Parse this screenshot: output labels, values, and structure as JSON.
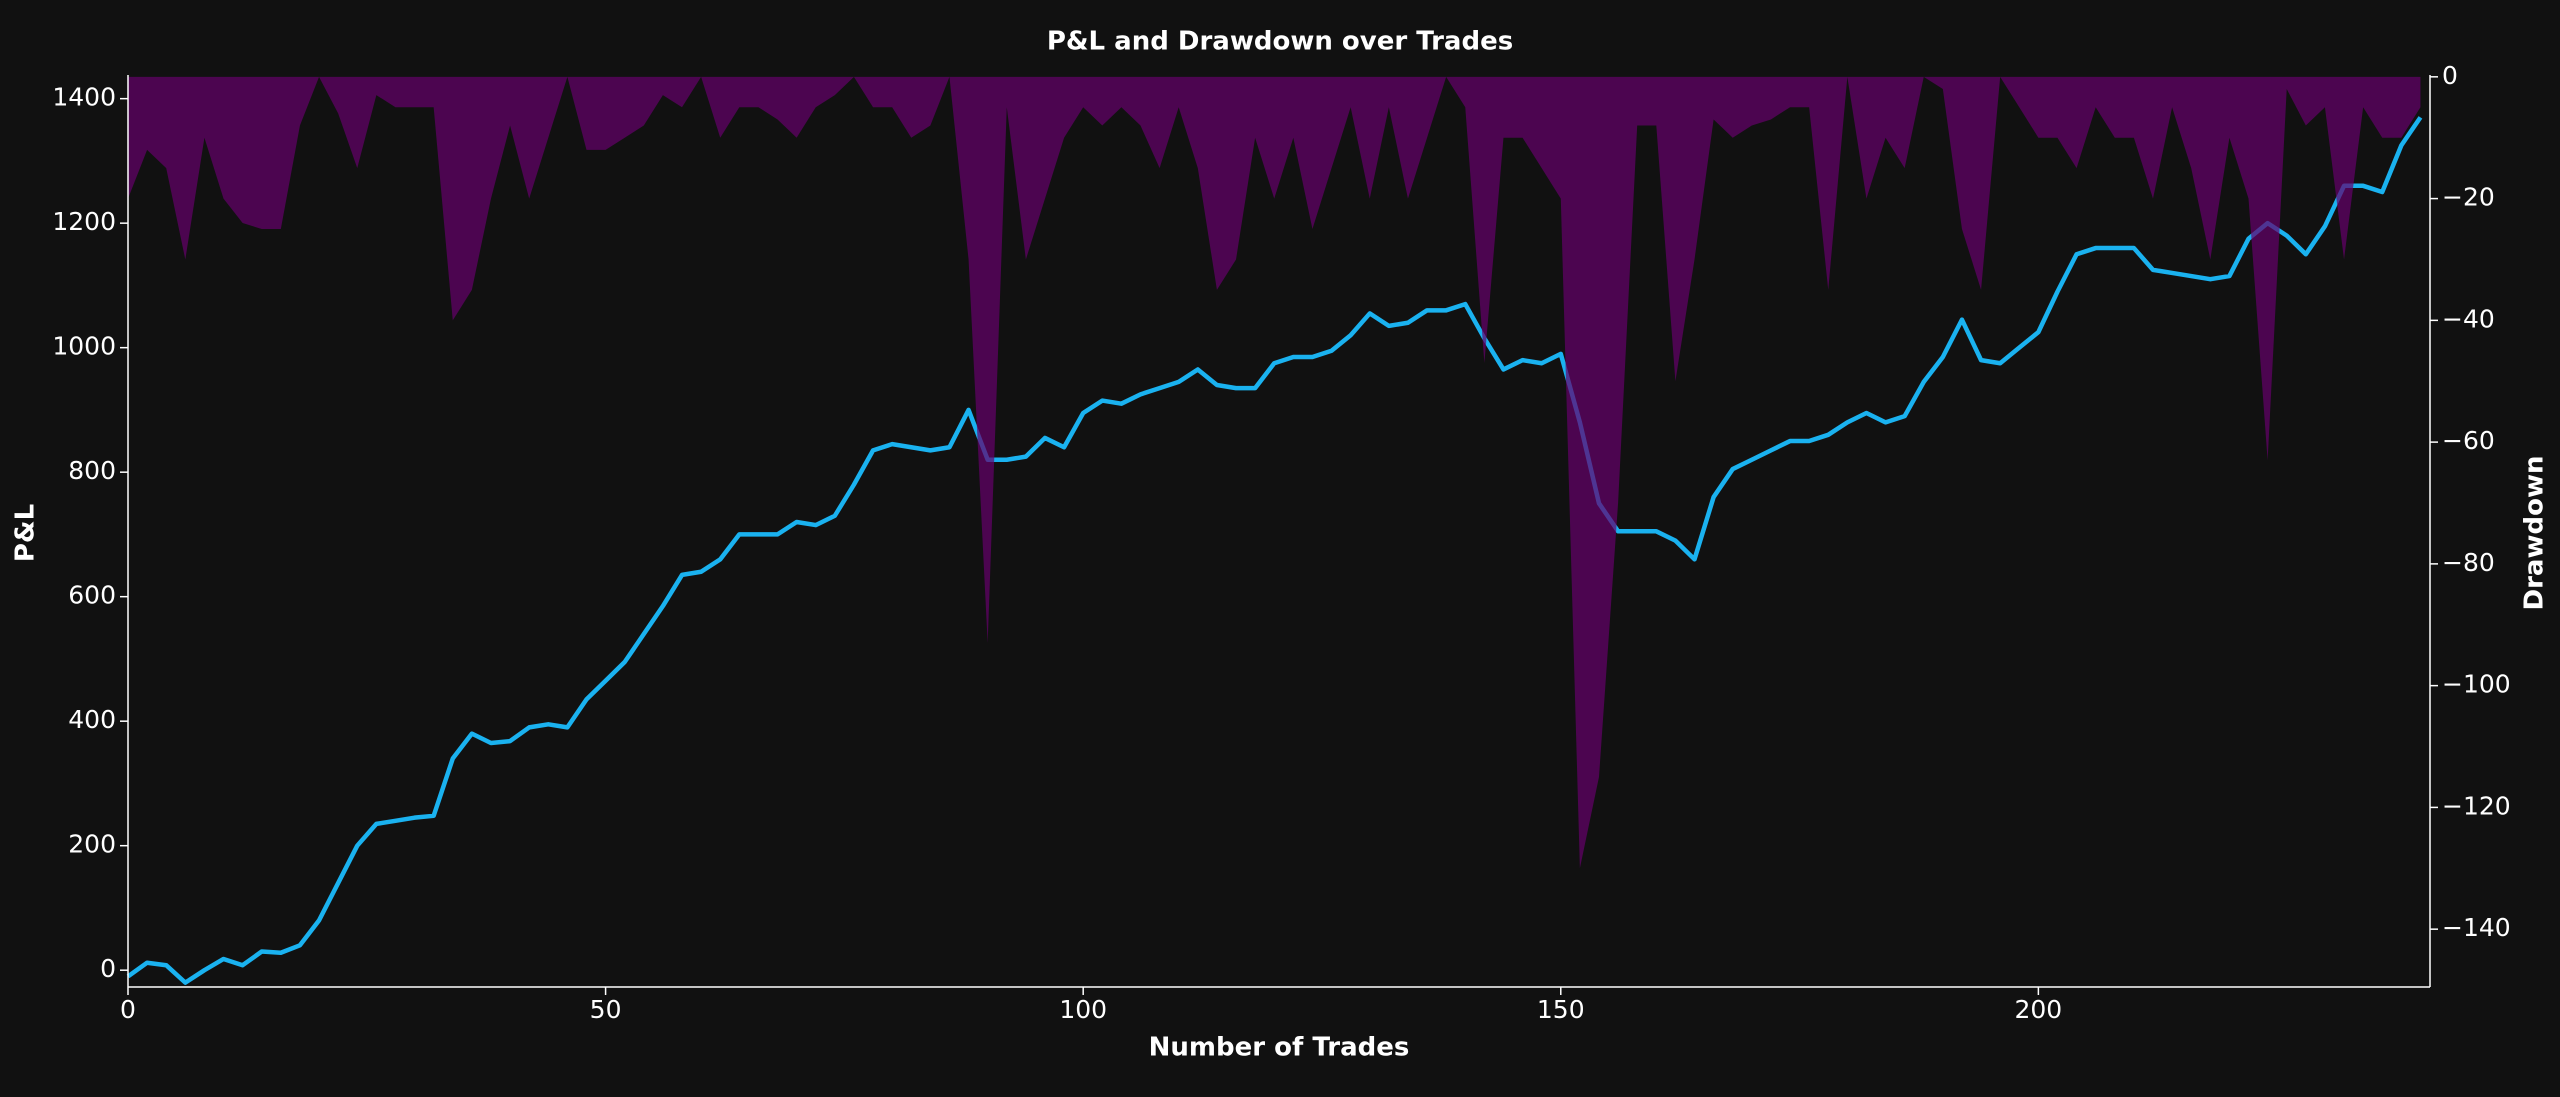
{
  "chart_data": {
    "type": "line",
    "title": "P&L and Drawdown over Trades",
    "x_label": "Number of Trades",
    "y_label": "P&L",
    "y2_label": "Drawdown",
    "x": [
      0,
      2,
      4,
      6,
      8,
      10,
      12,
      14,
      16,
      18,
      20,
      22,
      24,
      26,
      28,
      30,
      32,
      34,
      36,
      38,
      40,
      42,
      44,
      46,
      48,
      50,
      52,
      54,
      56,
      58,
      60,
      62,
      64,
      66,
      68,
      70,
      72,
      74,
      76,
      78,
      80,
      82,
      84,
      86,
      88,
      90,
      92,
      94,
      96,
      98,
      100,
      102,
      104,
      106,
      108,
      110,
      112,
      114,
      116,
      118,
      120,
      122,
      124,
      126,
      128,
      130,
      132,
      134,
      136,
      138,
      140,
      142,
      144,
      146,
      148,
      150,
      152,
      154,
      156,
      158,
      160,
      162,
      164,
      166,
      168,
      170,
      172,
      174,
      176,
      178,
      180,
      182,
      184,
      186,
      188,
      190,
      192,
      194,
      196,
      198,
      200,
      202,
      204,
      206,
      208,
      210,
      212,
      214,
      216,
      218,
      220,
      222,
      224,
      226,
      228,
      230,
      232,
      234,
      236,
      238,
      240
    ],
    "xlim": [
      0,
      241
    ],
    "xticks": [
      0,
      50,
      100,
      150,
      200
    ],
    "ylim": [
      -27,
      1438
    ],
    "yticks": [
      0,
      200,
      400,
      600,
      800,
      1000,
      1200,
      1400
    ],
    "y2lim": [
      -149.5,
      0.3
    ],
    "y2ticks": [
      0,
      {
        "value": -20,
        "label": "−20"
      },
      {
        "value": -40,
        "label": "−40"
      },
      {
        "value": -60,
        "label": "−60"
      },
      {
        "value": -80,
        "label": "−80"
      },
      {
        "value": -100,
        "label": "−100"
      },
      {
        "value": -120,
        "label": "−120"
      },
      {
        "value": -140,
        "label": "−140"
      }
    ],
    "series": [
      {
        "type": "line",
        "color": "#1ab2f0",
        "values": [
          -10,
          12,
          8,
          -20,
          0,
          18,
          8,
          30,
          28,
          40,
          80,
          140,
          200,
          235,
          240,
          245,
          248,
          340,
          380,
          365,
          368,
          390,
          395,
          390,
          435,
          465,
          495,
          540,
          585,
          635,
          640,
          660,
          700,
          700,
          700,
          720,
          715,
          730,
          780,
          835,
          845,
          840,
          835,
          840,
          900,
          820,
          820,
          825,
          855,
          840,
          895,
          915,
          910,
          925,
          935,
          945,
          965,
          940,
          935,
          935,
          975,
          985,
          985,
          995,
          1020,
          1055,
          1035,
          1040,
          1060,
          1060,
          1070,
          1015,
          965,
          980,
          975,
          990,
          880,
          750,
          705,
          705,
          705,
          690,
          660,
          760,
          805,
          820,
          835,
          850,
          850,
          860,
          880,
          895,
          880,
          890,
          945,
          985,
          1045,
          980,
          975,
          1000,
          1025,
          1090,
          1150,
          1160,
          1160,
          1160,
          1125,
          1120,
          1115,
          1110,
          1115,
          1175,
          1200,
          1180,
          1150,
          1195,
          1260,
          1260,
          1250,
          1325,
          1370
        ]
      },
      {
        "type": "area",
        "color": "#65006b",
        "axis": "y2",
        "values": [
          -20,
          -12,
          -15,
          -30,
          -10,
          -20,
          -24,
          -25,
          -25,
          -8,
          0,
          -6,
          -15,
          -3,
          -5,
          -5,
          -5,
          -40,
          -35,
          -20,
          -8,
          -20,
          -10,
          0,
          -12,
          -12,
          -10,
          -8,
          -3,
          -5,
          0,
          -10,
          -5,
          -5,
          -7,
          -10,
          -5,
          -3,
          0,
          -5,
          -5,
          -10,
          -8,
          0,
          -30,
          -93,
          -5,
          -30,
          -20,
          -10,
          -5,
          -8,
          -5,
          -8,
          -15,
          -5,
          -15,
          -35,
          -30,
          -10,
          -20,
          -10,
          -25,
          -15,
          -5,
          -20,
          -5,
          -20,
          -10,
          0,
          -5,
          -47,
          -10,
          -10,
          -15,
          -20,
          -130,
          -115,
          -70,
          -8,
          -8,
          -50,
          -30,
          -7,
          -10,
          -8,
          -7,
          -5,
          -5,
          -35,
          0,
          -20,
          -10,
          -15,
          0,
          -2,
          -25,
          -35,
          0,
          -5,
          -10,
          -10,
          -15,
          -5,
          -10,
          -10,
          -20,
          -5,
          -15,
          -30,
          -10,
          -20,
          -63,
          -2,
          -8,
          -5,
          -30,
          -5,
          -10,
          -10,
          -5
        ]
      }
    ]
  }
}
